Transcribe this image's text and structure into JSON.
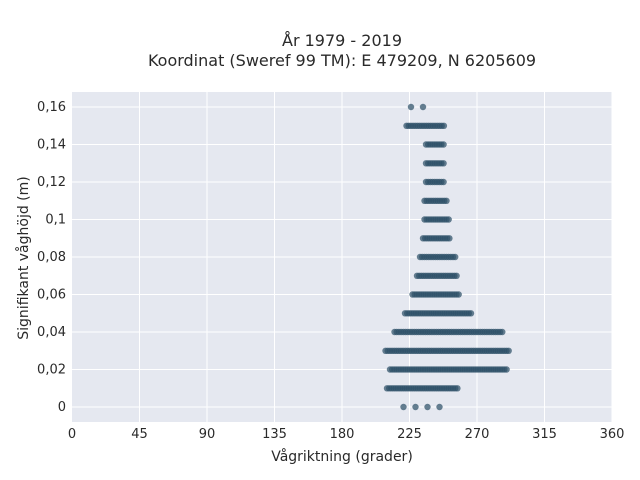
{
  "chart_data": {
    "type": "scatter",
    "title": [
      "År 1979 - 2019",
      "Koordinat (Sweref 99 TM): E 479209, N 6205609"
    ],
    "xlabel": "Vågriktning (grader)",
    "ylabel": "Signifikant våghöjd (m)",
    "xlim": [
      0,
      360
    ],
    "ylim": [
      -0.008,
      0.168
    ],
    "xticks": [
      0,
      45,
      90,
      135,
      180,
      225,
      270,
      315,
      360
    ],
    "xtick_labels": [
      "0",
      "45",
      "90",
      "135",
      "180",
      "225",
      "270",
      "315",
      "360"
    ],
    "yticks": [
      0,
      0.02,
      0.04,
      0.06,
      0.08,
      0.1,
      0.12,
      0.14,
      0.16
    ],
    "ytick_labels": [
      "0",
      "0,02",
      "0,04",
      "0,06",
      "0,08",
      "0,1",
      "0,12",
      "0,14",
      "0,16"
    ],
    "grid": true,
    "marker_color": "#2e5068",
    "plot_background": "#e5e8f0",
    "series": [
      {
        "bands": [
          {
            "y": 0.0,
            "x_min": 221,
            "x_max": 252,
            "sparse": true
          },
          {
            "y": 0.01,
            "x_min": 210,
            "x_max": 258,
            "sparse": false
          },
          {
            "y": 0.02,
            "x_min": 212,
            "x_max": 290,
            "sparse": false
          },
          {
            "y": 0.03,
            "x_min": 209,
            "x_max": 292,
            "sparse": false
          },
          {
            "y": 0.04,
            "x_min": 215,
            "x_max": 288,
            "sparse": false
          },
          {
            "y": 0.05,
            "x_min": 222,
            "x_max": 266,
            "sparse": false
          },
          {
            "y": 0.06,
            "x_min": 227,
            "x_max": 259,
            "sparse": false
          },
          {
            "y": 0.07,
            "x_min": 230,
            "x_max": 257,
            "sparse": false
          },
          {
            "y": 0.08,
            "x_min": 232,
            "x_max": 256,
            "sparse": false
          },
          {
            "y": 0.09,
            "x_min": 234,
            "x_max": 252,
            "sparse": false
          },
          {
            "y": 0.1,
            "x_min": 235,
            "x_max": 252,
            "sparse": false
          },
          {
            "y": 0.11,
            "x_min": 235,
            "x_max": 250,
            "sparse": false
          },
          {
            "y": 0.12,
            "x_min": 236,
            "x_max": 249,
            "sparse": false
          },
          {
            "y": 0.13,
            "x_min": 236,
            "x_max": 248,
            "sparse": false
          },
          {
            "y": 0.14,
            "x_min": 236,
            "x_max": 248,
            "sparse": false
          },
          {
            "y": 0.15,
            "x_min": 223,
            "x_max": 248,
            "sparse": false
          },
          {
            "y": 0.16,
            "x_min": 226,
            "x_max": 238,
            "sparse": true
          }
        ]
      }
    ]
  }
}
